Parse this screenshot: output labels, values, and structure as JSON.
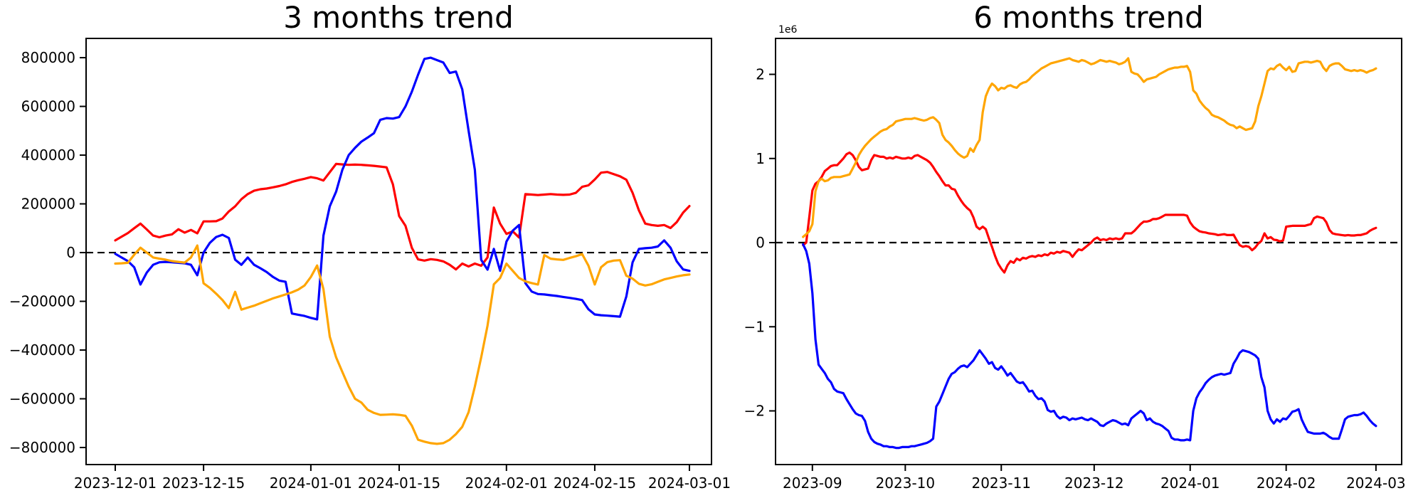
{
  "figure": {
    "background": "#ffffff",
    "text_color": "#000000"
  },
  "chart_data": [
    {
      "type": "line",
      "title": "3 months trend",
      "xlabel": "",
      "ylabel": "",
      "grid": false,
      "legend": null,
      "zero_line": {
        "style": "dashed",
        "color": "#000000",
        "value": 0
      },
      "frequency": "daily",
      "start_date": "2023-12-01",
      "x_start_day": 0,
      "xlim": [
        -4.62,
        94.5
      ],
      "ylim": [
        -870000,
        879000
      ],
      "xticks": [
        {
          "label": "2023-12-01",
          "day": 0
        },
        {
          "label": "2023-12-15",
          "day": 14
        },
        {
          "label": "2024-01-01",
          "day": 31
        },
        {
          "label": "2024-01-15",
          "day": 45
        },
        {
          "label": "2024-02-01",
          "day": 62
        },
        {
          "label": "2024-02-15",
          "day": 76
        },
        {
          "label": "2024-03-01",
          "day": 91
        }
      ],
      "yticks": [
        {
          "label": "800000",
          "value": 800000
        },
        {
          "label": "600000",
          "value": 600000
        },
        {
          "label": "400000",
          "value": 400000
        },
        {
          "label": "200000",
          "value": 200000
        },
        {
          "label": "0",
          "value": 0
        },
        {
          "label": "−200000",
          "value": -200000
        },
        {
          "label": "−400000",
          "value": -400000
        },
        {
          "label": "−600000",
          "value": -600000
        },
        {
          "label": "−800000",
          "value": -800000
        }
      ],
      "series": [
        {
          "name": "red-series",
          "color": "#ff0000",
          "values": [
            50000,
            65000,
            80000,
            100000,
            119000,
            95000,
            70000,
            63000,
            70000,
            75000,
            96000,
            82000,
            93000,
            79000,
            128000,
            128000,
            129000,
            140000,
            169000,
            190000,
            219000,
            240000,
            254000,
            260000,
            263000,
            268000,
            273000,
            280000,
            290000,
            297000,
            303000,
            310000,
            305000,
            296000,
            330000,
            364000,
            362000,
            360000,
            361000,
            360000,
            358000,
            356000,
            353000,
            350000,
            280000,
            150000,
            110000,
            20000,
            -28000,
            -33000,
            -27000,
            -30000,
            -36000,
            -50000,
            -69000,
            -45000,
            -57000,
            -45000,
            -54000,
            -20000,
            185000,
            119000,
            77000,
            87000,
            62000,
            240000,
            238000,
            236000,
            238000,
            240000,
            238000,
            237000,
            238000,
            245000,
            270000,
            276000,
            300000,
            328000,
            331000,
            322000,
            313000,
            299000,
            245000,
            173000,
            119000,
            113000,
            110000,
            113000,
            101000,
            125000,
            164000,
            191000
          ]
        },
        {
          "name": "blue-series",
          "color": "#0000ff",
          "values": [
            -5000,
            -20000,
            -35000,
            -60000,
            -131000,
            -82000,
            -50000,
            -40000,
            -38000,
            -40000,
            -42000,
            -44000,
            -50000,
            -93000,
            0,
            40000,
            64000,
            73000,
            60000,
            -29000,
            -50000,
            -20000,
            -50000,
            -64000,
            -80000,
            -100000,
            -115000,
            -120000,
            -250000,
            -255000,
            -260000,
            -268000,
            -274000,
            70000,
            190000,
            250000,
            340000,
            400000,
            430000,
            455000,
            472000,
            490000,
            545000,
            552000,
            550000,
            556000,
            600000,
            660000,
            730000,
            795000,
            800000,
            790000,
            780000,
            737000,
            743000,
            670000,
            500000,
            340000,
            -30000,
            -70000,
            15000,
            -75000,
            45000,
            90000,
            113000,
            -125000,
            -160000,
            -170000,
            -172000,
            -175000,
            -178000,
            -182000,
            -186000,
            -190000,
            -195000,
            -233000,
            -254000,
            -257000,
            -259000,
            -261000,
            -263000,
            -180000,
            -40000,
            15000,
            18000,
            20000,
            25000,
            50000,
            20000,
            -36000,
            -69000,
            -75000
          ]
        },
        {
          "name": "orange-series",
          "color": "#ffa500",
          "values": [
            -45000,
            -44000,
            -42000,
            -9000,
            20000,
            0,
            -20000,
            -25000,
            -29000,
            -35000,
            -38000,
            -41000,
            -20000,
            29000,
            -126000,
            -145000,
            -169000,
            -195000,
            -228000,
            -161000,
            -234000,
            -226000,
            -218000,
            -208000,
            -198000,
            -188000,
            -180000,
            -172000,
            -163000,
            -152000,
            -135000,
            -100000,
            -53000,
            -150000,
            -345000,
            -430000,
            -490000,
            -550000,
            -600000,
            -615000,
            -645000,
            -658000,
            -666000,
            -665000,
            -664000,
            -666000,
            -670000,
            -710000,
            -768000,
            -776000,
            -782000,
            -785000,
            -782000,
            -768000,
            -745000,
            -715000,
            -655000,
            -550000,
            -430000,
            -300000,
            -130000,
            -104000,
            -45000,
            -75000,
            -104000,
            -118000,
            -125000,
            -131000,
            -10000,
            -25000,
            -28000,
            -30000,
            -22000,
            -15000,
            -6000,
            -54000,
            -131000,
            -60000,
            -39000,
            -33000,
            -31000,
            -95000,
            -107000,
            -128000,
            -135000,
            -130000,
            -120000,
            -110000,
            -104000,
            -98000,
            -93000,
            -90000
          ]
        }
      ]
    },
    {
      "type": "line",
      "title": "6 months trend",
      "xlabel": "",
      "ylabel": "",
      "grid": false,
      "legend": null,
      "offset_label": "1e6",
      "value_unit": 1000000,
      "zero_line": {
        "style": "dashed",
        "color": "#000000",
        "value": 0
      },
      "frequency": "daily",
      "start_date": "2023-08-29",
      "x_start_day": -3,
      "xlim": [
        -11.9,
        190.3
      ],
      "ylim": [
        -2.638,
        2.427
      ],
      "xticks": [
        {
          "label": "2023-09",
          "day": 0
        },
        {
          "label": "2023-10",
          "day": 30
        },
        {
          "label": "2023-11",
          "day": 61
        },
        {
          "label": "2023-12",
          "day": 91
        },
        {
          "label": "2024-01",
          "day": 122
        },
        {
          "label": "2024-02",
          "day": 153
        },
        {
          "label": "2024-03",
          "day": 182
        }
      ],
      "yticks": [
        {
          "label": "2",
          "value": 2
        },
        {
          "label": "1",
          "value": 1
        },
        {
          "label": "0",
          "value": 0
        },
        {
          "label": "−1",
          "value": -1
        },
        {
          "label": "−2",
          "value": -2
        }
      ],
      "series": [
        {
          "name": "red-series",
          "color": "#ff0000",
          "values": [
            -0.03,
            0.0,
            0.3,
            0.62,
            0.7,
            0.73,
            0.78,
            0.85,
            0.88,
            0.91,
            0.92,
            0.92,
            0.96,
            1.0,
            1.05,
            1.07,
            1.04,
            0.98,
            0.9,
            0.86,
            0.87,
            0.88,
            0.98,
            1.04,
            1.03,
            1.02,
            1.02,
            1.0,
            1.01,
            1.0,
            1.02,
            1.01,
            1.0,
            1.0,
            1.01,
            1.0,
            1.03,
            1.04,
            1.02,
            1.0,
            0.98,
            0.95,
            0.9,
            0.84,
            0.79,
            0.73,
            0.68,
            0.68,
            0.64,
            0.63,
            0.56,
            0.5,
            0.45,
            0.41,
            0.38,
            0.3,
            0.19,
            0.16,
            0.19,
            0.16,
            0.05,
            -0.05,
            -0.16,
            -0.25,
            -0.31,
            -0.355,
            -0.27,
            -0.22,
            -0.24,
            -0.19,
            -0.21,
            -0.18,
            -0.19,
            -0.17,
            -0.16,
            -0.17,
            -0.15,
            -0.16,
            -0.14,
            -0.15,
            -0.12,
            -0.13,
            -0.11,
            -0.12,
            -0.1,
            -0.11,
            -0.12,
            -0.17,
            -0.12,
            -0.08,
            -0.09,
            -0.06,
            -0.03,
            0.0,
            0.04,
            0.06,
            0.03,
            0.04,
            0.03,
            0.05,
            0.04,
            0.05,
            0.04,
            0.05,
            0.11,
            0.11,
            0.11,
            0.14,
            0.18,
            0.22,
            0.25,
            0.25,
            0.26,
            0.28,
            0.28,
            0.29,
            0.31,
            0.33,
            0.33,
            0.33,
            0.33,
            0.33,
            0.33,
            0.33,
            0.32,
            0.24,
            0.19,
            0.16,
            0.135,
            0.125,
            0.12,
            0.11,
            0.105,
            0.1,
            0.09,
            0.095,
            0.1,
            0.09,
            0.09,
            0.095,
            0.03,
            -0.03,
            -0.05,
            -0.04,
            -0.05,
            -0.09,
            -0.06,
            -0.01,
            0.02,
            0.11,
            0.05,
            0.065,
            0.035,
            0.03,
            0.015,
            0.025,
            0.19,
            0.195,
            0.2,
            0.2,
            0.2,
            0.2,
            0.2,
            0.21,
            0.22,
            0.29,
            0.31,
            0.3,
            0.29,
            0.24,
            0.15,
            0.11,
            0.1,
            0.095,
            0.09,
            0.085,
            0.09,
            0.085,
            0.085,
            0.09,
            0.09,
            0.1,
            0.11,
            0.14,
            0.16,
            0.175
          ]
        },
        {
          "name": "blue-series",
          "color": "#0000ff",
          "values": [
            -0.02,
            -0.1,
            -0.25,
            -0.6,
            -1.15,
            -1.45,
            -1.5,
            -1.55,
            -1.62,
            -1.66,
            -1.74,
            -1.77,
            -1.78,
            -1.79,
            -1.86,
            -1.92,
            -1.98,
            -2.03,
            -2.05,
            -2.06,
            -2.12,
            -2.25,
            -2.33,
            -2.37,
            -2.39,
            -2.4,
            -2.42,
            -2.42,
            -2.43,
            -2.43,
            -2.44,
            -2.44,
            -2.43,
            -2.43,
            -2.43,
            -2.42,
            -2.42,
            -2.41,
            -2.4,
            -2.39,
            -2.38,
            -2.36,
            -2.33,
            -1.95,
            -1.89,
            -1.8,
            -1.71,
            -1.62,
            -1.56,
            -1.54,
            -1.5,
            -1.47,
            -1.46,
            -1.48,
            -1.44,
            -1.4,
            -1.34,
            -1.28,
            -1.33,
            -1.38,
            -1.44,
            -1.42,
            -1.49,
            -1.51,
            -1.47,
            -1.52,
            -1.58,
            -1.55,
            -1.6,
            -1.65,
            -1.67,
            -1.66,
            -1.71,
            -1.77,
            -1.76,
            -1.82,
            -1.86,
            -1.85,
            -1.89,
            -1.99,
            -2.01,
            -2.0,
            -2.06,
            -2.09,
            -2.07,
            -2.08,
            -2.11,
            -2.09,
            -2.1,
            -2.09,
            -2.08,
            -2.1,
            -2.11,
            -2.09,
            -2.11,
            -2.13,
            -2.17,
            -2.18,
            -2.15,
            -2.13,
            -2.11,
            -2.12,
            -2.14,
            -2.16,
            -2.15,
            -2.17,
            -2.09,
            -2.06,
            -2.03,
            -2.0,
            -2.03,
            -2.11,
            -2.09,
            -2.13,
            -2.15,
            -2.16,
            -2.18,
            -2.21,
            -2.24,
            -2.32,
            -2.34,
            -2.34,
            -2.35,
            -2.35,
            -2.34,
            -2.35,
            -2.0,
            -1.85,
            -1.78,
            -1.73,
            -1.67,
            -1.63,
            -1.6,
            -1.58,
            -1.57,
            -1.56,
            -1.57,
            -1.56,
            -1.55,
            -1.44,
            -1.38,
            -1.31,
            -1.28,
            -1.29,
            -1.3,
            -1.32,
            -1.34,
            -1.38,
            -1.6,
            -1.72,
            -2.0,
            -2.1,
            -2.15,
            -2.1,
            -2.13,
            -2.09,
            -2.1,
            -2.06,
            -2.01,
            -2.0,
            -1.98,
            -2.1,
            -2.18,
            -2.25,
            -2.26,
            -2.27,
            -2.27,
            -2.27,
            -2.26,
            -2.28,
            -2.31,
            -2.33,
            -2.33,
            -2.33,
            -2.22,
            -2.1,
            -2.07,
            -2.06,
            -2.05,
            -2.05,
            -2.04,
            -2.02,
            -2.06,
            -2.11,
            -2.15,
            -2.18
          ]
        },
        {
          "name": "orange-series",
          "color": "#ffa500",
          "values": [
            0.068,
            0.1,
            0.135,
            0.22,
            0.61,
            0.73,
            0.76,
            0.73,
            0.74,
            0.77,
            0.78,
            0.78,
            0.78,
            0.79,
            0.8,
            0.81,
            0.88,
            0.95,
            1.04,
            1.1,
            1.15,
            1.19,
            1.23,
            1.26,
            1.29,
            1.32,
            1.34,
            1.35,
            1.38,
            1.4,
            1.44,
            1.45,
            1.46,
            1.47,
            1.47,
            1.47,
            1.48,
            1.47,
            1.46,
            1.45,
            1.46,
            1.48,
            1.49,
            1.46,
            1.42,
            1.28,
            1.22,
            1.19,
            1.15,
            1.1,
            1.06,
            1.03,
            1.01,
            1.03,
            1.12,
            1.08,
            1.16,
            1.22,
            1.55,
            1.74,
            1.83,
            1.89,
            1.86,
            1.81,
            1.84,
            1.83,
            1.86,
            1.87,
            1.85,
            1.84,
            1.88,
            1.9,
            1.91,
            1.94,
            1.98,
            2.01,
            2.04,
            2.07,
            2.09,
            2.11,
            2.13,
            2.14,
            2.15,
            2.16,
            2.17,
            2.18,
            2.19,
            2.17,
            2.16,
            2.15,
            2.17,
            2.16,
            2.14,
            2.12,
            2.13,
            2.15,
            2.17,
            2.16,
            2.15,
            2.16,
            2.15,
            2.14,
            2.12,
            2.13,
            2.15,
            2.19,
            2.03,
            2.01,
            2.0,
            1.96,
            1.91,
            1.94,
            1.95,
            1.96,
            1.97,
            2.0,
            2.02,
            2.04,
            2.06,
            2.07,
            2.08,
            2.08,
            2.09,
            2.09,
            2.1,
            2.03,
            1.81,
            1.77,
            1.69,
            1.64,
            1.6,
            1.57,
            1.52,
            1.5,
            1.49,
            1.47,
            1.45,
            1.42,
            1.4,
            1.39,
            1.36,
            1.38,
            1.36,
            1.34,
            1.35,
            1.36,
            1.44,
            1.62,
            1.74,
            1.89,
            2.04,
            2.07,
            2.06,
            2.1,
            2.12,
            2.08,
            2.05,
            2.09,
            2.03,
            2.04,
            2.13,
            2.14,
            2.15,
            2.15,
            2.14,
            2.15,
            2.16,
            2.15,
            2.08,
            2.04,
            2.1,
            2.12,
            2.13,
            2.13,
            2.1,
            2.06,
            2.05,
            2.04,
            2.05,
            2.04,
            2.05,
            2.04,
            2.02,
            2.04,
            2.05,
            2.07
          ]
        }
      ]
    }
  ]
}
